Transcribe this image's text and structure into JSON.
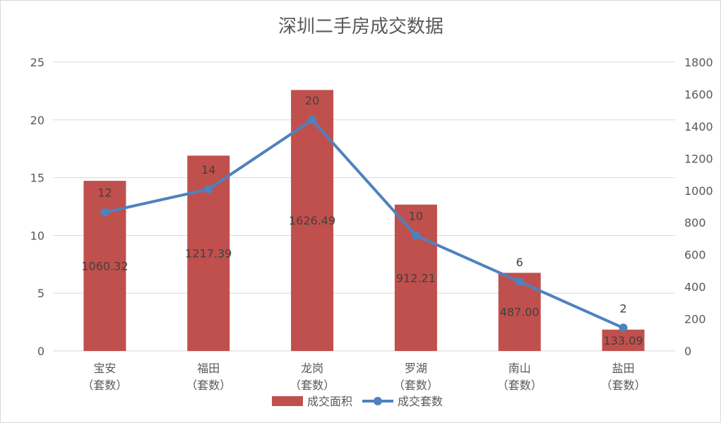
{
  "chart_data": {
    "type": "bar+line",
    "title": "深圳二手房成交数据",
    "categories": [
      [
        "宝安",
        "（套数）"
      ],
      [
        "福田",
        "（套数）"
      ],
      [
        "龙岗",
        "（套数）"
      ],
      [
        "罗湖",
        "（套数）"
      ],
      [
        "南山",
        "（套数）"
      ],
      [
        "盐田",
        "（套数）"
      ]
    ],
    "series": [
      {
        "name": "成交面积",
        "type": "bar",
        "axis": "right",
        "color": "#c0504d",
        "values": [
          1060.32,
          1217.39,
          1626.49,
          912.21,
          487.0,
          133.09
        ],
        "labels": [
          "1060.32",
          "1217.39",
          "1626.49",
          "912.21",
          "487.00",
          "133.09"
        ]
      },
      {
        "name": "成交套数",
        "type": "line",
        "axis": "left",
        "color": "#4f81bd",
        "values": [
          12,
          14,
          20,
          10,
          6,
          2
        ],
        "labels": [
          "12",
          "14",
          "20",
          "10",
          "6",
          "2"
        ]
      }
    ],
    "y_left": {
      "min": 0,
      "max": 25,
      "ticks": [
        0,
        5,
        10,
        15,
        20,
        25
      ]
    },
    "y_right": {
      "min": 0,
      "max": 1800,
      "ticks": [
        0,
        200,
        400,
        600,
        800,
        1000,
        1200,
        1400,
        1600,
        1800
      ]
    },
    "legend_position": "bottom",
    "grid": true
  }
}
